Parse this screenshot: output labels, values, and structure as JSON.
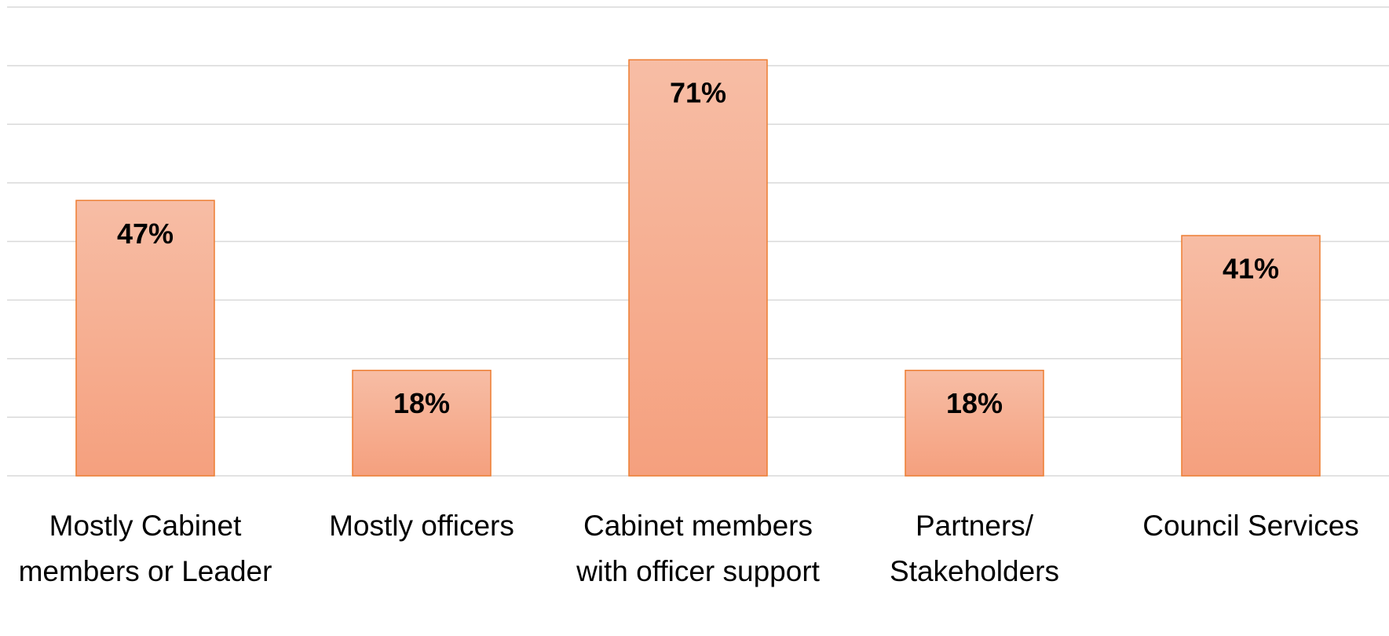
{
  "chart_data": {
    "type": "bar",
    "categories": [
      "Mostly Cabinet members or Leader",
      "Mostly officers",
      "Cabinet members with officer support",
      "Partners/ Stakeholders",
      "Council Services"
    ],
    "values": [
      47,
      18,
      71,
      18,
      41
    ],
    "value_labels": [
      "47%",
      "18%",
      "71%",
      "18%",
      "41%"
    ],
    "color": "#f5a07e",
    "ylim": [
      0,
      80
    ],
    "yticks": [
      0,
      10,
      20,
      30,
      40,
      50,
      60,
      70,
      80
    ],
    "grid": true
  }
}
